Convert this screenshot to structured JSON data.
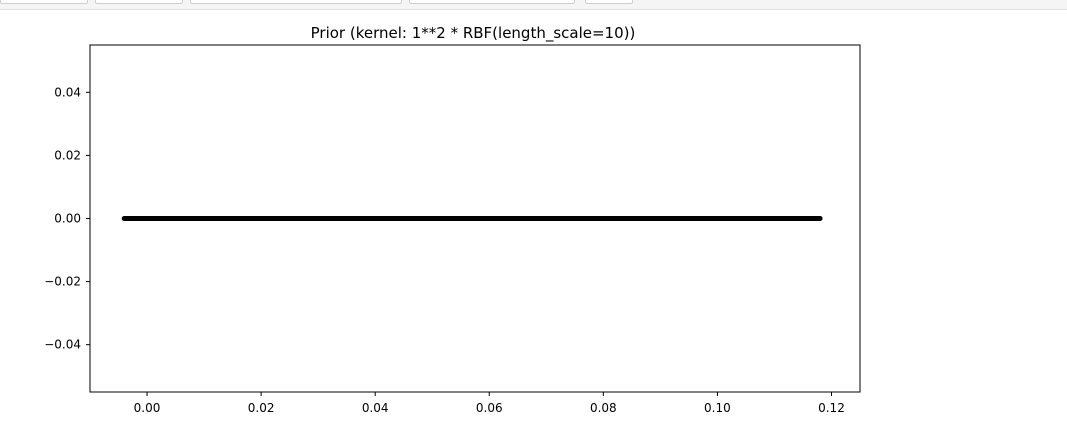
{
  "toolbar": {
    "buttons": [
      "",
      "",
      "",
      "",
      ""
    ]
  },
  "chart_data": {
    "type": "line",
    "title": "Prior (kernel:  1**2 * RBF(length_scale=10))",
    "xlabel": "",
    "ylabel": "",
    "xlim": [
      -0.01,
      0.125
    ],
    "ylim": [
      -0.055,
      0.055
    ],
    "x_ticks": [
      0.0,
      0.02,
      0.04,
      0.06,
      0.08,
      0.1,
      0.12
    ],
    "x_tick_labels": [
      "0.00",
      "0.02",
      "0.04",
      "0.06",
      "0.08",
      "0.10",
      "0.12"
    ],
    "y_ticks": [
      0.04,
      0.02,
      0.0,
      -0.02,
      -0.04
    ],
    "y_tick_labels": [
      "0.04",
      "0.02",
      "0.00",
      "−0.02",
      "−0.04"
    ],
    "grid": false,
    "series": [
      {
        "color": "#000000",
        "x": [
          -0.004,
          0.118
        ],
        "y": [
          0.0,
          0.0
        ]
      }
    ]
  }
}
